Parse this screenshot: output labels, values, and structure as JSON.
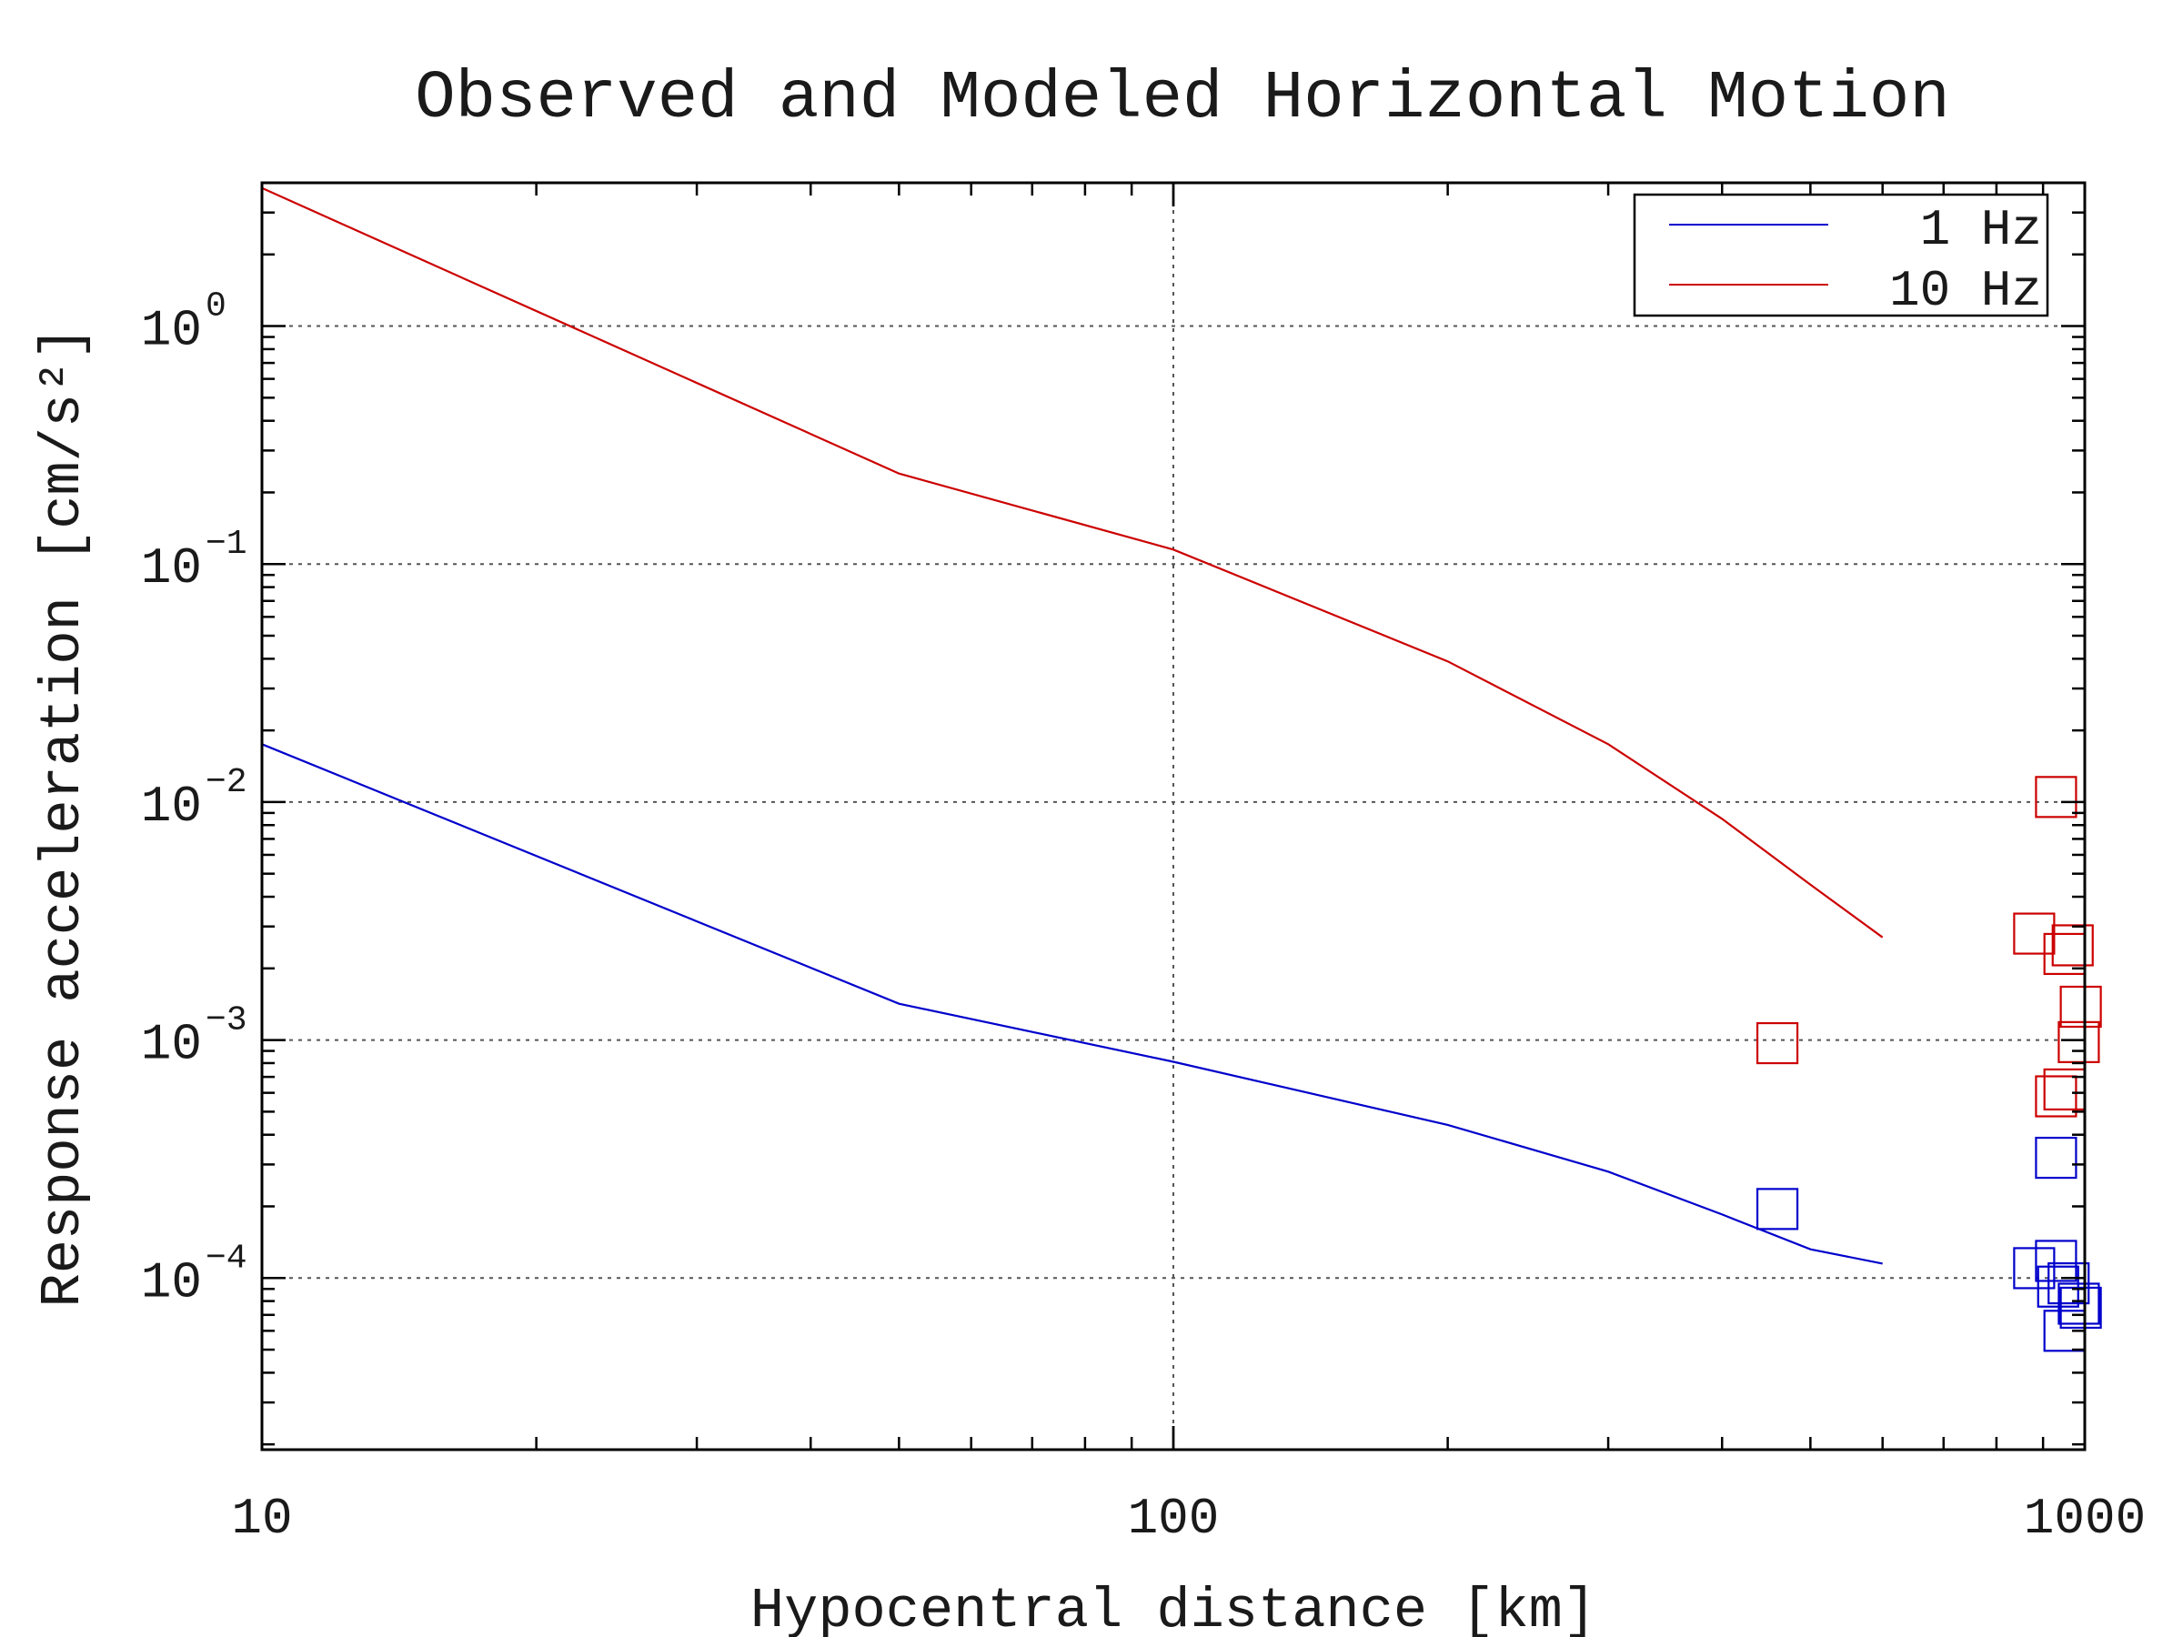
{
  "chart_data": {
    "type": "line",
    "title": "Observed and Modeled Horizontal Motion",
    "xlabel": "Hypocentral distance [km]",
    "ylabel": "Response acceleration [cm/s²]",
    "x_scale": "log",
    "y_scale": "log",
    "xlim": [
      10,
      1000
    ],
    "ylim": [
      1.9e-05,
      4.0
    ],
    "x_ticks": [
      {
        "value": 10,
        "label": "10"
      },
      {
        "value": 100,
        "label": "100"
      },
      {
        "value": 1000,
        "label": "1000"
      }
    ],
    "y_ticks": [
      {
        "value": 1,
        "base": "10",
        "exp": "0"
      },
      {
        "value": 0.1,
        "base": "10",
        "exp": "−1"
      },
      {
        "value": 0.01,
        "base": "10",
        "exp": "−2"
      },
      {
        "value": 0.001,
        "base": "10",
        "exp": "−3"
      },
      {
        "value": 0.0001,
        "base": "10",
        "exp": "−4"
      }
    ],
    "grid": true,
    "legend_position": "top-right",
    "series": [
      {
        "name": "1 Hz",
        "color": "#0000cc",
        "x": [
          10,
          50,
          100,
          200,
          300,
          400,
          500,
          600
        ],
        "y": [
          0.0175,
          0.00142,
          0.00081,
          0.00044,
          0.00028,
          0.000185,
          0.000132,
          0.000115
        ]
      },
      {
        "name": "10 Hz",
        "color": "#cc0000",
        "x": [
          10,
          50,
          100,
          200,
          300,
          400,
          500,
          600
        ],
        "y": [
          3.8,
          0.24,
          0.115,
          0.039,
          0.0175,
          0.0085,
          0.0045,
          0.0027
        ]
      }
    ],
    "observed": [
      {
        "series": "10 Hz",
        "color": "#cc0000",
        "points": [
          {
            "x": 460,
            "y": 0.00097
          },
          {
            "x": 930,
            "y": 0.0105
          },
          {
            "x": 880,
            "y": 0.0028
          },
          {
            "x": 950,
            "y": 0.0023
          },
          {
            "x": 970,
            "y": 0.0025
          },
          {
            "x": 990,
            "y": 0.00138
          },
          {
            "x": 985,
            "y": 0.00098
          },
          {
            "x": 930,
            "y": 0.00058
          },
          {
            "x": 950,
            "y": 0.00062
          }
        ]
      },
      {
        "series": "1 Hz",
        "color": "#0000cc",
        "points": [
          {
            "x": 460,
            "y": 0.000195
          },
          {
            "x": 930,
            "y": 0.00032
          },
          {
            "x": 880,
            "y": 0.00011
          },
          {
            "x": 930,
            "y": 0.000118
          },
          {
            "x": 935,
            "y": 9.2e-05
          },
          {
            "x": 960,
            "y": 9.5e-05
          },
          {
            "x": 985,
            "y": 7.8e-05
          },
          {
            "x": 950,
            "y": 6e-05
          },
          {
            "x": 990,
            "y": 7.5e-05
          }
        ]
      }
    ]
  }
}
